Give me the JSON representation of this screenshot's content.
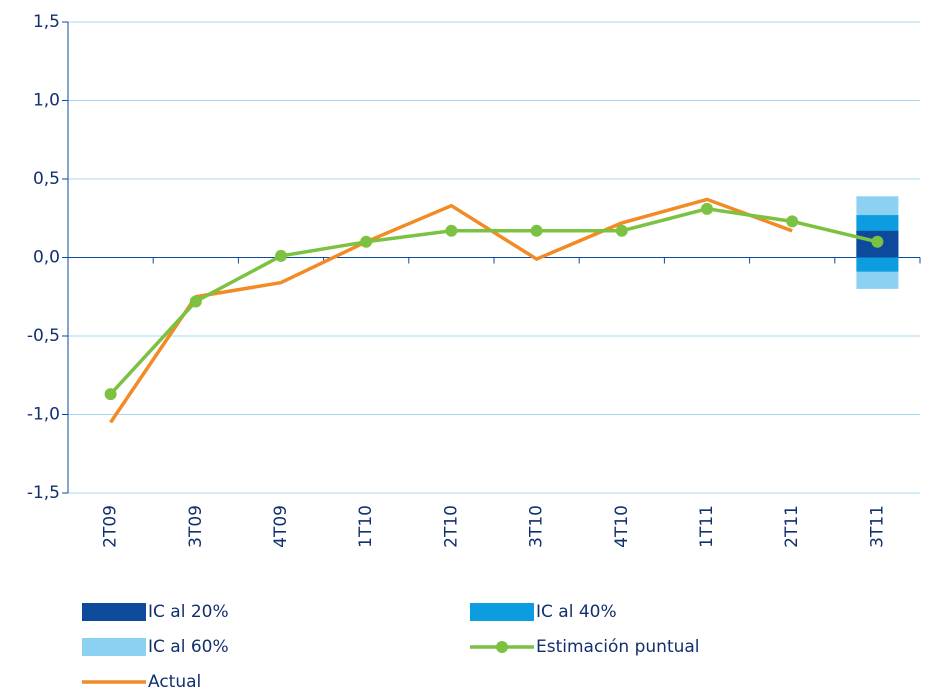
{
  "chart_data": {
    "type": "line",
    "categories": [
      "2T09",
      "3T09",
      "4T09",
      "1T10",
      "2T10",
      "3T10",
      "4T10",
      "1T11",
      "2T11",
      "3T11"
    ],
    "series": [
      {
        "name": "IC al 20%",
        "type": "interval",
        "color": "#0d4a9c",
        "values": [
          null,
          null,
          null,
          null,
          null,
          null,
          null,
          null,
          null,
          [
            0.0,
            0.17
          ]
        ]
      },
      {
        "name": "IC al 40%",
        "type": "interval",
        "color": "#0b9de0",
        "values": [
          null,
          null,
          null,
          null,
          null,
          null,
          null,
          null,
          null,
          [
            -0.09,
            0.27
          ]
        ]
      },
      {
        "name": "IC al 60%",
        "type": "interval",
        "color": "#8dd1f2",
        "values": [
          null,
          null,
          null,
          null,
          null,
          null,
          null,
          null,
          null,
          [
            -0.2,
            0.39
          ]
        ]
      },
      {
        "name": "Estimación puntual",
        "type": "line",
        "markers": true,
        "color": "#7cc242",
        "values": [
          -0.87,
          -0.28,
          0.01,
          0.1,
          0.17,
          0.17,
          0.17,
          0.31,
          0.23,
          0.1
        ]
      },
      {
        "name": "Actual",
        "type": "line",
        "markers": false,
        "color": "#f28a26",
        "values": [
          -1.05,
          -0.25,
          -0.16,
          0.1,
          0.33,
          -0.01,
          0.22,
          0.37,
          0.17,
          null
        ]
      }
    ],
    "ylim": [
      -1.5,
      1.5
    ],
    "yticks": [
      {
        "value": -1.5,
        "label": "-1,5"
      },
      {
        "value": -1,
        "label": "-1,0"
      },
      {
        "value": -0.5,
        "label": "-0,5"
      },
      {
        "value": 0,
        "label": "0,0"
      },
      {
        "value": 0.5,
        "label": "0,5"
      },
      {
        "value": 1,
        "label": "1,0"
      },
      {
        "value": 1.5,
        "label": "1,5"
      }
    ],
    "grid": true
  }
}
